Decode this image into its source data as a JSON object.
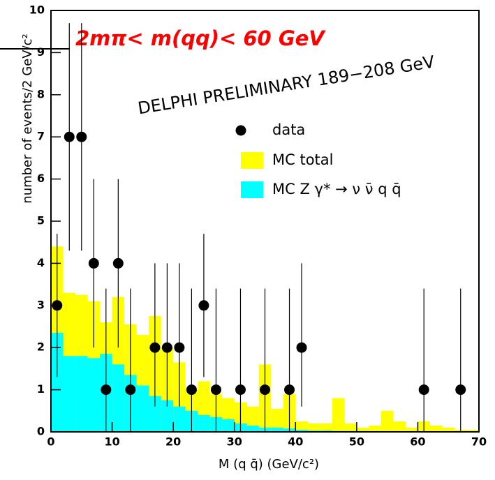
{
  "chart_data": {
    "type": "histogram",
    "x_label": "M (q q̄)  (GeV/c²)",
    "y_label": "number of events/2 GeV/c²",
    "annotations": [
      "2mπ< m(qq)< 60 GeV",
      "DELPHI PRELIMINARY 189−208 GeV"
    ],
    "xlim": [
      0,
      70
    ],
    "xticks": [
      0,
      10,
      20,
      30,
      40,
      50,
      60,
      70
    ],
    "ylim": [
      0,
      10
    ],
    "yticks": [
      0,
      1,
      2,
      3,
      4,
      5,
      6,
      7,
      8,
      9,
      10
    ],
    "bins": [
      0,
      2,
      4,
      6,
      8,
      10,
      12,
      14,
      16,
      18,
      20,
      22,
      24,
      26,
      28,
      30,
      32,
      34,
      36,
      38,
      40,
      42,
      44,
      46,
      48,
      50,
      52,
      54,
      56,
      58,
      60,
      62,
      64,
      66,
      68,
      70
    ],
    "series": [
      {
        "name": "MC total",
        "color": "#ffff00",
        "values": [
          4.4,
          3.3,
          3.25,
          3.1,
          2.6,
          3.2,
          2.55,
          2.3,
          2.75,
          2.0,
          1.65,
          1.0,
          1.2,
          0.9,
          0.8,
          0.7,
          0.6,
          1.6,
          0.55,
          0.9,
          0.25,
          0.2,
          0.2,
          0.8,
          0.2,
          0.1,
          0.15,
          0.5,
          0.25,
          0.1,
          0.25,
          0.15,
          0.1,
          0.05,
          0.05
        ]
      },
      {
        "name": "MC Z γ* → ν ν̄ q q̄",
        "color": "#00ffff",
        "values": [
          2.35,
          1.8,
          1.8,
          1.75,
          1.85,
          1.6,
          1.35,
          1.1,
          0.85,
          0.75,
          0.6,
          0.5,
          0.4,
          0.35,
          0.3,
          0.2,
          0.15,
          0.1,
          0.1,
          0.08,
          0.05,
          0.03,
          0.03,
          0.02,
          0.02,
          0.02,
          0.01,
          0.01,
          0.01,
          0.01,
          0.01,
          0.01,
          0.01,
          0.01,
          0.01
        ]
      }
    ],
    "points": {
      "name": "data",
      "color": "#000000",
      "x": [
        1,
        3,
        5,
        7,
        9,
        11,
        13,
        17,
        19,
        21,
        23,
        25,
        27,
        31,
        35,
        39,
        41,
        61,
        67
      ],
      "values": [
        3,
        7,
        7,
        4,
        1,
        4,
        1,
        2,
        2,
        2,
        1,
        3,
        1,
        1,
        1,
        1,
        2,
        1,
        1
      ],
      "err_low": [
        1.7,
        2.7,
        2.7,
        2.0,
        1.0,
        2.0,
        1.0,
        1.4,
        1.4,
        1.4,
        1.0,
        1.7,
        1.0,
        1.0,
        1.0,
        1.0,
        1.4,
        1.0,
        1.0
      ],
      "err_high": [
        1.7,
        2.7,
        2.7,
        2.0,
        2.4,
        2.0,
        2.4,
        2.0,
        2.0,
        2.0,
        2.4,
        1.7,
        2.4,
        2.4,
        2.4,
        2.4,
        2.0,
        2.4,
        2.4
      ]
    }
  }
}
